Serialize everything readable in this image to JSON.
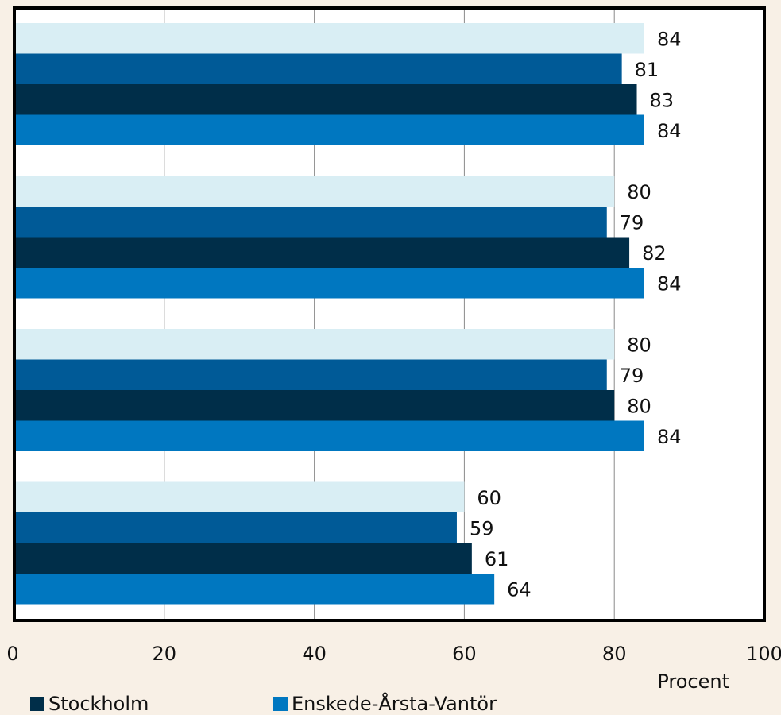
{
  "chart_data": {
    "type": "bar",
    "orientation": "horizontal",
    "title": "",
    "xlabel": "Procent",
    "ylabel": "",
    "xlim": [
      0,
      100
    ],
    "x_ticks": [
      "0",
      "20",
      "40",
      "60",
      "80",
      "100"
    ],
    "grid": "vertical",
    "groups": 4,
    "series": [
      {
        "name": "",
        "color": "#d9eef4",
        "values": [
          84,
          80,
          80,
          60
        ]
      },
      {
        "name": "",
        "color": "#005a97",
        "values": [
          81,
          79,
          79,
          59
        ]
      },
      {
        "name": "Stockholm",
        "color": "#002e49",
        "values": [
          83,
          82,
          80,
          61
        ]
      },
      {
        "name": "Enskede-Årsta-Vantör",
        "color": "#0077c0",
        "values": [
          84,
          84,
          84,
          64
        ]
      }
    ],
    "legend_position": "bottom-left"
  },
  "legend": {
    "items": [
      {
        "label": "Stockholm",
        "color": "#002e49"
      },
      {
        "label": "Enskede-Årsta-Vantör",
        "color": "#0077c0"
      }
    ]
  },
  "colors": {
    "background": "#f8f0e6",
    "plot_background": "#ffffff",
    "grid": "#8a8a8a",
    "frame": "#000000"
  }
}
